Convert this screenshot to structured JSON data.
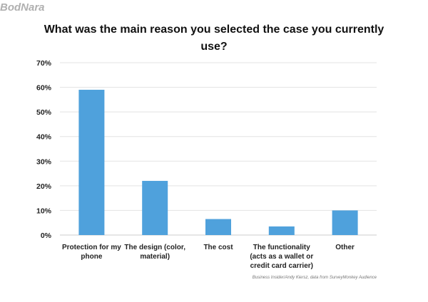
{
  "chart_data": {
    "type": "bar",
    "title": "What was the main reason you selected the case you currently use?",
    "categories": [
      [
        "Protection for my",
        "phone"
      ],
      [
        "The design (color,",
        "material)"
      ],
      [
        "The cost"
      ],
      [
        "The functionality",
        "(acts as a wallet or",
        "credit card carrier)"
      ],
      [
        "Other"
      ]
    ],
    "values": [
      59,
      22,
      6.5,
      3.5,
      10
    ],
    "ylim": [
      0,
      70
    ],
    "yticks": [
      0,
      10,
      20,
      30,
      40,
      50,
      60,
      70
    ],
    "ytick_labels": [
      "0%",
      "10%",
      "20%",
      "30%",
      "40%",
      "50%",
      "60%",
      "70%"
    ],
    "xlabel": "",
    "ylabel": "",
    "grid": true,
    "bar_color": "#4fa1dc",
    "grid_color": "#e3e3e3"
  },
  "source": "Business Insider/Andy Kiersz, data from SurveyMonkey Audience",
  "watermark": "BodNara"
}
